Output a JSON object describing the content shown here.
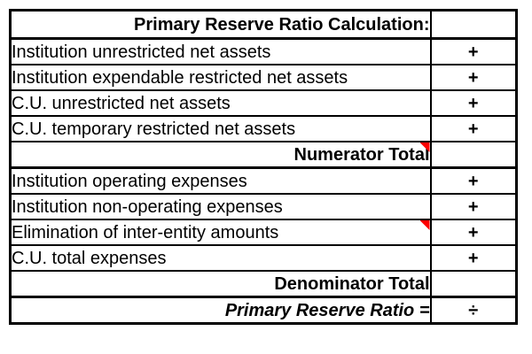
{
  "table": {
    "header": {
      "title": "Primary Reserve Ratio Calculation:",
      "operator": ""
    },
    "rows": [
      {
        "label": "Institution unrestricted net assets",
        "operator": "+",
        "has_comment_marker": false
      },
      {
        "label": "Institution expendable restricted net assets",
        "operator": "+",
        "has_comment_marker": false
      },
      {
        "label": "C.U. unrestricted net assets",
        "operator": "+",
        "has_comment_marker": false
      },
      {
        "label": "C.U. temporary restricted net assets",
        "operator": "+",
        "has_comment_marker": false
      },
      {
        "label": "Numerator Total",
        "operator": "",
        "has_comment_marker": true
      },
      {
        "label": "Institution operating expenses",
        "operator": "+",
        "has_comment_marker": false
      },
      {
        "label": "Institution non-operating expenses",
        "operator": "+",
        "has_comment_marker": false
      },
      {
        "label": "Elimination of inter-entity amounts",
        "operator": "+",
        "has_comment_marker": true
      },
      {
        "label": "C.U. total expenses",
        "operator": "+",
        "has_comment_marker": false
      },
      {
        "label": "Denominator Total",
        "operator": "",
        "has_comment_marker": false
      },
      {
        "label": "Primary Reserve Ratio =",
        "operator": "÷",
        "has_comment_marker": false
      }
    ]
  },
  "colors": {
    "comment_marker": "#ff0000",
    "border": "#000000",
    "text": "#000000",
    "background": "#ffffff"
  }
}
